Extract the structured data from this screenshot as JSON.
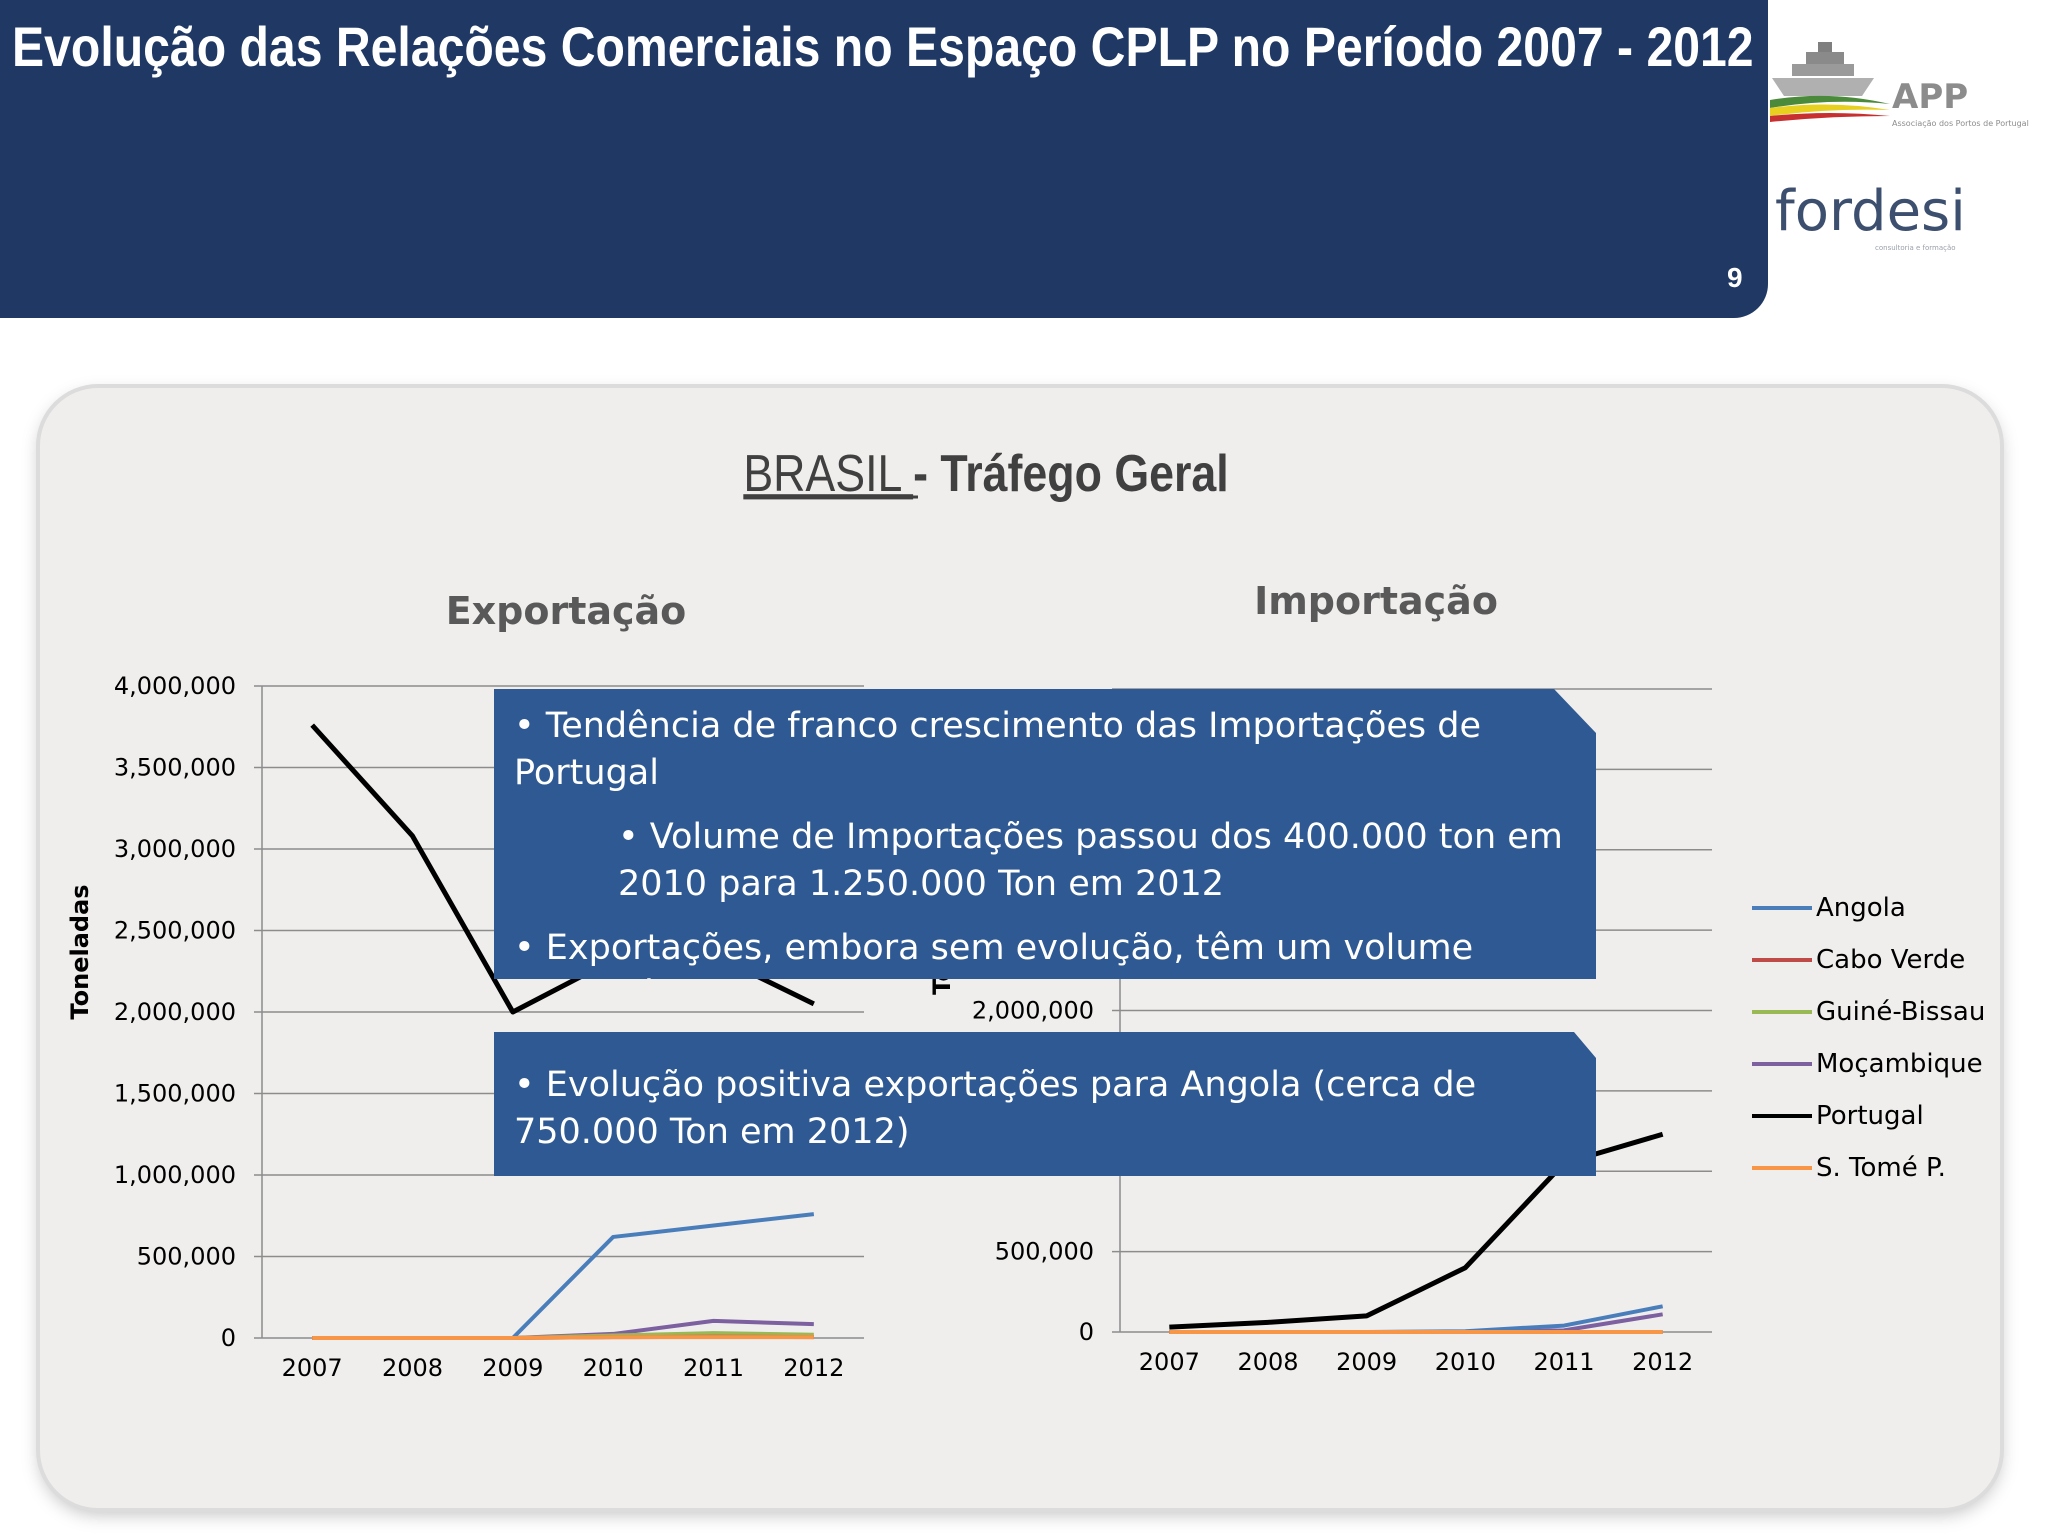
{
  "header": {
    "title": "Evolução das Relações Comerciais no Espaço CPLP no Período 2007 - 2012",
    "slide_number": "9",
    "background_color": "#1f3864"
  },
  "logos": {
    "app": {
      "text": "APP",
      "subtext": "Associação dos Portos de Portugal",
      "icon": "ship-icon"
    },
    "fordesi": {
      "text": "fordesi",
      "subtext": "consultoria e formação"
    }
  },
  "panel": {
    "title_underlined": "BRASIL ",
    "title_rest": "- Tráfego Geral"
  },
  "callouts": {
    "c1_line1": "• Tendência de franco crescimento das Importações de Portugal",
    "c1_sub": "• Volume de Importações passou dos 400.000 ton em 2010 para 1.250.000 Ton em 2012",
    "c1_line2": "• Exportações, embora sem evolução, têm um volume assinalável",
    "c2_line1": "• Evolução positiva exportações para Angola (cerca de 750.000 Ton em 2012)"
  },
  "chart_data": [
    {
      "type": "line",
      "title": "Exportação",
      "ylabel": "Toneladas",
      "xlabel": "",
      "x": [
        "2007",
        "2008",
        "2009",
        "2010",
        "2011",
        "2012"
      ],
      "ylim": [
        0,
        4000000
      ],
      "yticks": [
        "0",
        "500,000",
        "1,000,000",
        "1,500,000",
        "2,000,000",
        "2,500,000",
        "3,000,000",
        "3,500,000",
        "4,000,000"
      ],
      "grid": true,
      "series": [
        {
          "name": "Angola",
          "color": "#4a7ebb",
          "values": [
            0,
            0,
            0,
            620000,
            690000,
            760000
          ]
        },
        {
          "name": "Cabo Verde",
          "color": "#be4b48",
          "values": [
            0,
            0,
            0,
            5000,
            8000,
            5000
          ]
        },
        {
          "name": "Guiné-Bissau",
          "color": "#98b954",
          "values": [
            0,
            0,
            0,
            15000,
            30000,
            20000
          ]
        },
        {
          "name": "Moçambique",
          "color": "#7d60a0",
          "values": [
            0,
            0,
            0,
            25000,
            105000,
            85000
          ]
        },
        {
          "name": "Portugal",
          "color": "#000000",
          "values": [
            3760000,
            3080000,
            2000000,
            2320000,
            2350000,
            2050000
          ]
        },
        {
          "name": "S. Tomé P.",
          "color": "#f79646",
          "values": [
            0,
            0,
            0,
            5000,
            5000,
            5000
          ]
        }
      ]
    },
    {
      "type": "line",
      "title": "Importação",
      "ylabel": "To",
      "xlabel": "",
      "x": [
        "2007",
        "2008",
        "2009",
        "2010",
        "2011",
        "2012"
      ],
      "ylim": [
        0,
        4000000
      ],
      "yticks_visible": [
        "0",
        "500,000",
        "2,000,000"
      ],
      "grid": true,
      "legend": "right",
      "series": [
        {
          "name": "Angola",
          "color": "#4a7ebb",
          "values": [
            0,
            0,
            0,
            5000,
            40000,
            160000
          ]
        },
        {
          "name": "Cabo Verde",
          "color": "#be4b48",
          "values": [
            0,
            0,
            0,
            0,
            0,
            0
          ]
        },
        {
          "name": "Guiné-Bissau",
          "color": "#98b954",
          "values": [
            0,
            0,
            0,
            0,
            0,
            0
          ]
        },
        {
          "name": "Moçambique",
          "color": "#7d60a0",
          "values": [
            0,
            0,
            0,
            0,
            10000,
            110000
          ]
        },
        {
          "name": "Portugal",
          "color": "#000000",
          "values": [
            30000,
            60000,
            100000,
            400000,
            1050000,
            1230000
          ]
        },
        {
          "name": "S. Tomé P.",
          "color": "#f79646",
          "values": [
            0,
            0,
            0,
            0,
            0,
            0
          ]
        }
      ]
    }
  ]
}
